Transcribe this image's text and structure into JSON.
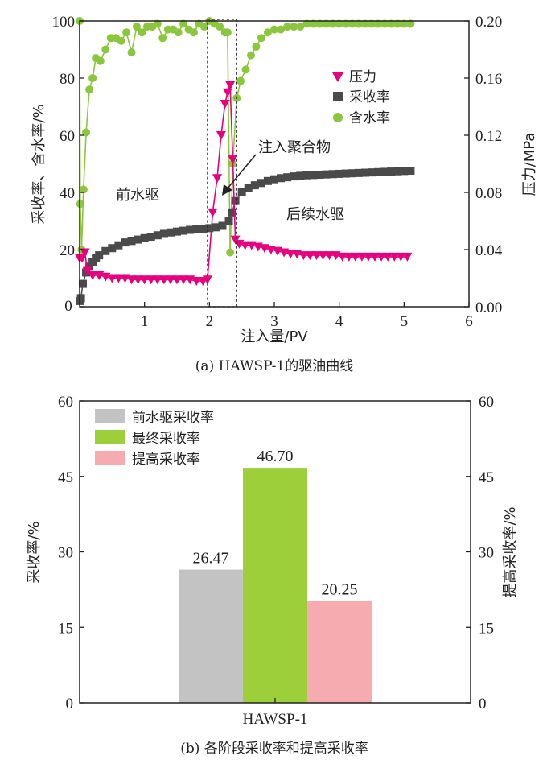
{
  "chart_data": [
    {
      "type": "line",
      "caption": "(a) HAWSP-1的驱油曲线",
      "xlabel": "注入量/PV",
      "ylabel": "采收率、含水率/%",
      "y2label": "压力/MPa",
      "xlim": [
        0,
        6
      ],
      "ylim": [
        0,
        100
      ],
      "y2lim": [
        0,
        0.2
      ],
      "xticks": [
        "1",
        "2",
        "3",
        "4",
        "5",
        "6"
      ],
      "x_origin_label": "0",
      "yticks": [
        "0",
        "20",
        "40",
        "60",
        "80",
        "100"
      ],
      "y2ticks": [
        "0.00",
        "0.04",
        "0.08",
        "0.12",
        "0.16",
        "0.20"
      ],
      "grid": false,
      "legend_position": "top-right",
      "annotations": {
        "injection": "注入聚合物",
        "pre_water": "前水驱",
        "post_water": "后续水驱"
      },
      "injection_window_pv": [
        1.97,
        2.42
      ],
      "series": [
        {
          "name": "压力",
          "axis": "right",
          "marker": "triangle-down",
          "color": "#e6007e",
          "x": [
            0.0,
            0.04,
            0.08,
            0.12,
            0.2,
            0.3,
            0.4,
            0.5,
            0.6,
            0.7,
            0.8,
            0.9,
            1.0,
            1.1,
            1.2,
            1.3,
            1.4,
            1.5,
            1.6,
            1.7,
            1.8,
            1.9,
            1.97,
            2.05,
            2.12,
            2.18,
            2.24,
            2.28,
            2.32,
            2.36,
            2.4,
            2.46,
            2.55,
            2.65,
            2.75,
            2.85,
            2.95,
            3.05,
            3.15,
            3.25,
            3.35,
            3.45,
            3.55,
            3.65,
            3.75,
            3.85,
            3.95,
            4.05,
            4.15,
            4.25,
            4.35,
            4.45,
            4.55,
            4.65,
            4.75,
            4.85,
            4.95,
            5.05
          ],
          "values": [
            0.034,
            0.034,
            0.038,
            0.025,
            0.022,
            0.022,
            0.021,
            0.02,
            0.02,
            0.02,
            0.019,
            0.019,
            0.019,
            0.019,
            0.019,
            0.019,
            0.019,
            0.019,
            0.019,
            0.019,
            0.018,
            0.018,
            0.019,
            0.066,
            0.09,
            0.12,
            0.142,
            0.15,
            0.155,
            0.103,
            0.047,
            0.044,
            0.043,
            0.043,
            0.042,
            0.041,
            0.04,
            0.039,
            0.038,
            0.037,
            0.037,
            0.036,
            0.036,
            0.036,
            0.036,
            0.036,
            0.036,
            0.035,
            0.035,
            0.035,
            0.035,
            0.035,
            0.035,
            0.035,
            0.035,
            0.035,
            0.035,
            0.035
          ]
        },
        {
          "name": "采收率",
          "axis": "left",
          "marker": "square",
          "color": "#4a4a4a",
          "x": [
            0.0,
            0.02,
            0.05,
            0.1,
            0.15,
            0.2,
            0.25,
            0.3,
            0.4,
            0.5,
            0.6,
            0.7,
            0.8,
            0.9,
            1.0,
            1.1,
            1.2,
            1.3,
            1.4,
            1.5,
            1.6,
            1.7,
            1.8,
            1.9,
            2.0,
            2.1,
            2.2,
            2.3,
            2.35,
            2.4,
            2.5,
            2.6,
            2.7,
            2.8,
            2.9,
            3.0,
            3.1,
            3.2,
            3.3,
            3.4,
            3.5,
            3.6,
            3.7,
            3.8,
            3.9,
            4.0,
            4.1,
            4.2,
            4.3,
            4.4,
            4.5,
            4.6,
            4.7,
            4.8,
            4.9,
            5.0,
            5.1
          ],
          "values": [
            2,
            3,
            8,
            12,
            14,
            15.5,
            17,
            18,
            19.5,
            20.5,
            21.5,
            22.5,
            23,
            23.5,
            24,
            24.5,
            25,
            25.5,
            26,
            26.3,
            26.6,
            26.9,
            27.1,
            27.3,
            27.5,
            27.8,
            28.3,
            30,
            33,
            37,
            40,
            41.5,
            42.5,
            43.3,
            44,
            44.6,
            45,
            45.3,
            45.6,
            45.8,
            46,
            46.1,
            46.2,
            46.3,
            46.4,
            46.5,
            46.6,
            46.7,
            46.8,
            46.9,
            47,
            47.1,
            47.2,
            47.3,
            47.4,
            47.5,
            47.6
          ]
        },
        {
          "name": "含水率",
          "axis": "left",
          "marker": "circle",
          "color": "#8cc63e",
          "x": [
            0.0,
            0.01,
            0.03,
            0.06,
            0.1,
            0.15,
            0.2,
            0.25,
            0.32,
            0.4,
            0.48,
            0.56,
            0.64,
            0.72,
            0.8,
            0.88,
            0.96,
            1.04,
            1.12,
            1.2,
            1.28,
            1.36,
            1.44,
            1.52,
            1.6,
            1.68,
            1.76,
            1.84,
            1.92,
            2.0,
            2.08,
            2.16,
            2.24,
            2.28,
            2.32,
            2.36,
            2.42,
            2.48,
            2.56,
            2.64,
            2.72,
            2.8,
            2.9,
            3.0,
            3.1,
            3.2,
            3.3,
            3.4,
            3.5,
            3.6,
            3.7,
            3.8,
            3.9,
            4.0,
            4.1,
            4.2,
            4.3,
            4.4,
            4.5,
            4.6,
            4.7,
            4.8,
            4.9,
            5.0,
            5.1
          ],
          "values": [
            100,
            36,
            20,
            41,
            61,
            76,
            80,
            87,
            86,
            90,
            94,
            94,
            93,
            96,
            89,
            98,
            96,
            98,
            98,
            99,
            94,
            97,
            97,
            96,
            99,
            97,
            96,
            99,
            98,
            100,
            99,
            98,
            96,
            96,
            19,
            50,
            73,
            79,
            83,
            88,
            91,
            94,
            96,
            97,
            97,
            98,
            98,
            98,
            99,
            99,
            99,
            99,
            99,
            99,
            99,
            99,
            99,
            99,
            99,
            99,
            99,
            99,
            99,
            99,
            99
          ]
        }
      ]
    },
    {
      "type": "bar",
      "caption": "(b) 各阶段采收率和提高采收率",
      "ylabel": "采收率/%",
      "y2label": "提高采收率/%",
      "ylim": [
        0,
        60
      ],
      "y2lim": [
        0,
        60
      ],
      "yticks": [
        "0",
        "15",
        "30",
        "45",
        "60"
      ],
      "y2ticks": [
        "0",
        "15",
        "30",
        "45",
        "60"
      ],
      "categories": [
        "HAWSP-1"
      ],
      "legend_position": "top-left",
      "series": [
        {
          "name": "前水驱采收率",
          "values": [
            26.47
          ],
          "label": "26.47",
          "color": "#c3c3c4"
        },
        {
          "name": "最终采收率",
          "values": [
            46.7
          ],
          "label": "46.70",
          "color": "#9ccf3a"
        },
        {
          "name": "提高采收率",
          "values": [
            20.25
          ],
          "label": "20.25",
          "color": "#f5abaf"
        }
      ]
    }
  ]
}
